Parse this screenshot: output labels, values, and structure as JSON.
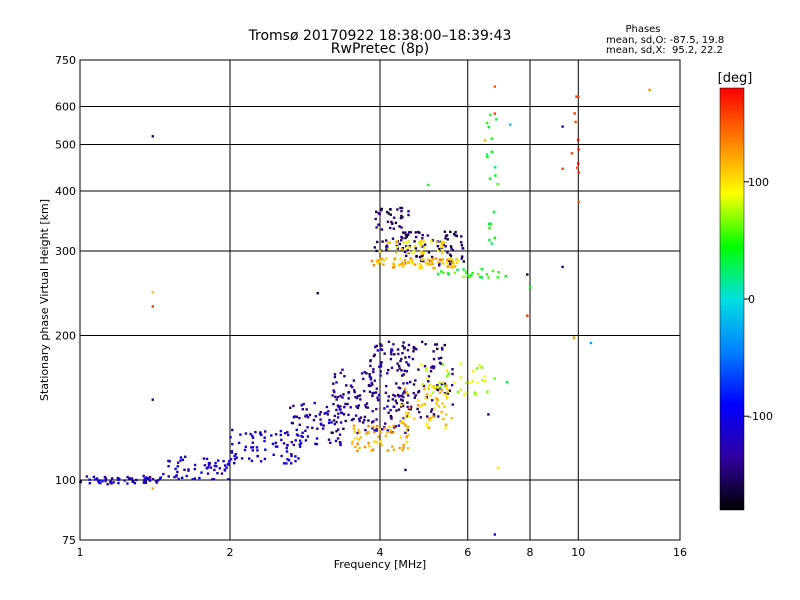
{
  "chart_data": {
    "type": "scatter",
    "title": "Tromsø 20170922 18:38:00–18:39:43",
    "subtitle": "RwPretec (8p)",
    "xlabel": "Frequency [MHz]",
    "ylabel": "Stationary phase Virtual Height [km]",
    "x_scale": "log",
    "y_scale": "log",
    "xlim": [
      1,
      16
    ],
    "ylim": [
      75,
      750
    ],
    "x_ticks": [
      1,
      2,
      4,
      6,
      8,
      10,
      16
    ],
    "x_tick_labels": [
      "1",
      "2",
      "4",
      "6",
      "8",
      "10",
      "16"
    ],
    "y_ticks": [
      75,
      100,
      200,
      300,
      400,
      500,
      600,
      750
    ],
    "y_tick_labels": [
      "75",
      "100",
      "200",
      "300",
      "400",
      "500",
      "600",
      "750"
    ],
    "grid": true,
    "stats": {
      "header": "Phases",
      "line_o": "mean, sd,O: -87.5, 19.8",
      "line_x": "mean, sd,X:  95.2, 22.2"
    },
    "colorbar": {
      "label": "[deg]",
      "range": [
        -180,
        180
      ],
      "ticks": [
        100,
        0,
        -100
      ],
      "tick_labels": [
        "100",
        "0",
        "-100"
      ],
      "colors": [
        "#ff0000",
        "#ff8000",
        "#ffff00",
        "#00ff00",
        "#00e0e0",
        "#0080ff",
        "#0000ff",
        "#3000a0",
        "#000000"
      ]
    },
    "trace_segments": [
      {
        "x_range": [
          1.0,
          1.45
        ],
        "y_range": [
          98,
          102
        ],
        "phase": -120,
        "count": 55
      },
      {
        "x_range": [
          1.45,
          2.0
        ],
        "y_range": [
          100,
          112
        ],
        "phase": -115,
        "count": 60
      },
      {
        "x_range": [
          2.0,
          2.8
        ],
        "y_range": [
          108,
          128
        ],
        "phase": -110,
        "count": 75
      },
      {
        "x_range": [
          2.6,
          3.4
        ],
        "y_range": [
          118,
          145
        ],
        "phase": -125,
        "count": 70
      },
      {
        "x_range": [
          3.2,
          3.9
        ],
        "y_range": [
          125,
          170
        ],
        "phase": -140,
        "count": 80
      },
      {
        "x_range": [
          3.8,
          4.6
        ],
        "y_range": [
          125,
          195
        ],
        "phase": -135,
        "count": 110
      },
      {
        "x_range": [
          4.2,
          5.6
        ],
        "y_range": [
          135,
          195
        ],
        "phase": -145,
        "count": 90
      },
      {
        "x_range": [
          3.5,
          4.6
        ],
        "y_range": [
          115,
          130
        ],
        "phase": 120,
        "count": 60
      },
      {
        "x_range": [
          4.4,
          5.6
        ],
        "y_range": [
          128,
          160
        ],
        "phase": 110,
        "count": 60
      },
      {
        "x_range": [
          4.8,
          6.8
        ],
        "y_range": [
          150,
          175
        ],
        "phase": 80,
        "count": 40
      },
      {
        "x_range": [
          3.9,
          4.6
        ],
        "y_range": [
          300,
          370
        ],
        "phase": -150,
        "count": 55
      },
      {
        "x_range": [
          4.4,
          5.9
        ],
        "y_range": [
          280,
          330
        ],
        "phase": -155,
        "count": 70
      },
      {
        "x_range": [
          3.8,
          5.8
        ],
        "y_range": [
          276,
          290
        ],
        "phase": 115,
        "count": 75
      },
      {
        "x_range": [
          4.0,
          5.4
        ],
        "y_range": [
          295,
          315
        ],
        "phase": 100,
        "count": 40
      },
      {
        "x_range": [
          5.2,
          7.2
        ],
        "y_range": [
          264,
          275
        ],
        "phase": 50,
        "count": 25
      },
      {
        "x_range": [
          6.5,
          6.9
        ],
        "y_range": [
          300,
          600
        ],
        "phase": 40,
        "count": 20
      },
      {
        "x_range": [
          9.7,
          10.1
        ],
        "y_range": [
          360,
          650
        ],
        "phase": 160,
        "count": 12
      }
    ],
    "isolated_points": [
      {
        "x": 1.4,
        "y": 520,
        "phase": -150
      },
      {
        "x": 1.4,
        "y": 246,
        "phase": 110
      },
      {
        "x": 1.4,
        "y": 230,
        "phase": 160
      },
      {
        "x": 1.4,
        "y": 147,
        "phase": -140
      },
      {
        "x": 1.4,
        "y": 96,
        "phase": 120
      },
      {
        "x": 3.0,
        "y": 245,
        "phase": -160
      },
      {
        "x": 5.0,
        "y": 412,
        "phase": 40
      },
      {
        "x": 6.5,
        "y": 510,
        "phase": 120
      },
      {
        "x": 6.8,
        "y": 660,
        "phase": 150
      },
      {
        "x": 6.8,
        "y": 580,
        "phase": 160
      },
      {
        "x": 7.3,
        "y": 550,
        "phase": -10
      },
      {
        "x": 9.3,
        "y": 545,
        "phase": -130
      },
      {
        "x": 9.3,
        "y": 445,
        "phase": 160
      },
      {
        "x": 9.3,
        "y": 278,
        "phase": -150
      },
      {
        "x": 10.6,
        "y": 193,
        "phase": -30
      },
      {
        "x": 9.8,
        "y": 198,
        "phase": 130
      },
      {
        "x": 13.9,
        "y": 650,
        "phase": 130
      },
      {
        "x": 7.9,
        "y": 268,
        "phase": -160
      },
      {
        "x": 8.0,
        "y": 252,
        "phase": 40
      },
      {
        "x": 7.9,
        "y": 220,
        "phase": 160
      },
      {
        "x": 6.8,
        "y": 77,
        "phase": -110
      },
      {
        "x": 6.9,
        "y": 106,
        "phase": 100
      },
      {
        "x": 4.5,
        "y": 105,
        "phase": -150
      },
      {
        "x": 6.6,
        "y": 137,
        "phase": -150
      },
      {
        "x": 7.2,
        "y": 160,
        "phase": 30
      }
    ]
  }
}
